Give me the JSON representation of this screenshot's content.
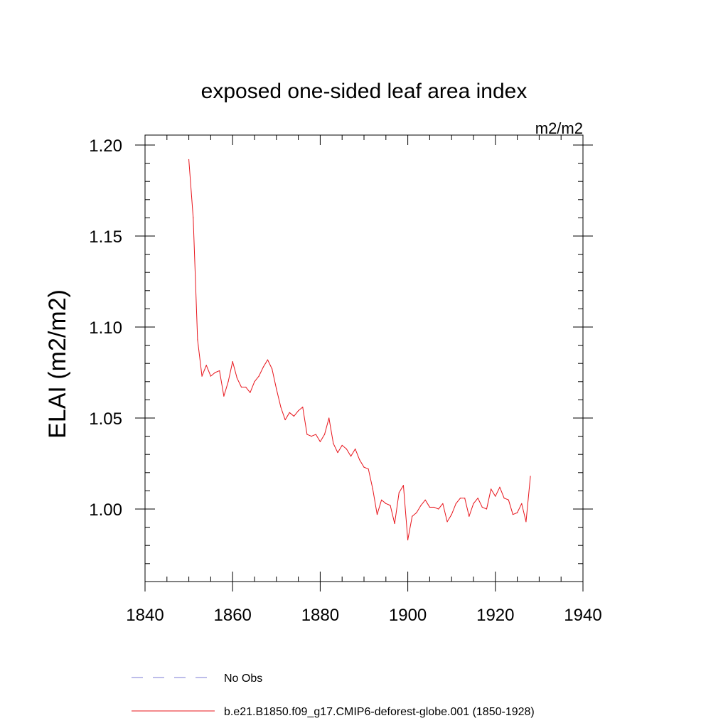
{
  "chart_data": {
    "type": "line",
    "title": "exposed one-sided leaf area index",
    "units_label": "m2/m2",
    "ylabel": "ELAI  (m2/m2)",
    "xlabel": "",
    "xlim": [
      1840,
      1940
    ],
    "ylim": [
      0.96,
      1.205
    ],
    "x_ticks": [
      1840,
      1860,
      1880,
      1900,
      1920,
      1940
    ],
    "x_tick_labels": [
      "1840",
      "1860",
      "1880",
      "1900",
      "1920",
      "1940"
    ],
    "y_ticks": [
      1.0,
      1.05,
      1.1,
      1.15,
      1.2
    ],
    "y_tick_labels": [
      "1.00",
      "1.05",
      "1.10",
      "1.15",
      "1.20"
    ],
    "grid": false,
    "series": [
      {
        "name": "b.e21.B1850.f09_g17.CMIP6-deforest-globe.001 (1850-1928)",
        "color": "#e8141b",
        "x": [
          1850,
          1851,
          1852,
          1853,
          1854,
          1855,
          1856,
          1857,
          1858,
          1859,
          1860,
          1861,
          1862,
          1863,
          1864,
          1865,
          1866,
          1867,
          1868,
          1869,
          1870,
          1871,
          1872,
          1873,
          1874,
          1875,
          1876,
          1877,
          1878,
          1879,
          1880,
          1881,
          1882,
          1883,
          1884,
          1885,
          1886,
          1887,
          1888,
          1889,
          1890,
          1891,
          1892,
          1893,
          1894,
          1895,
          1896,
          1897,
          1898,
          1899,
          1900,
          1901,
          1902,
          1903,
          1904,
          1905,
          1906,
          1907,
          1908,
          1909,
          1910,
          1911,
          1912,
          1913,
          1914,
          1915,
          1916,
          1917,
          1918,
          1919,
          1920,
          1921,
          1922,
          1923,
          1924,
          1925,
          1926,
          1927,
          1928
        ],
        "values": [
          1.192,
          1.16,
          1.093,
          1.073,
          1.079,
          1.073,
          1.075,
          1.076,
          1.062,
          1.07,
          1.081,
          1.072,
          1.067,
          1.067,
          1.064,
          1.07,
          1.073,
          1.078,
          1.082,
          1.077,
          1.066,
          1.056,
          1.049,
          1.053,
          1.051,
          1.054,
          1.056,
          1.041,
          1.04,
          1.041,
          1.037,
          1.041,
          1.05,
          1.036,
          1.031,
          1.035,
          1.033,
          1.029,
          1.033,
          1.027,
          1.023,
          1.022,
          1.011,
          0.997,
          1.005,
          1.003,
          1.002,
          0.992,
          1.009,
          1.013,
          0.983,
          0.996,
          0.998,
          1.002,
          1.005,
          1.001,
          1.001,
          1.0,
          1.003,
          0.993,
          0.997,
          1.003,
          1.006,
          1.006,
          0.996,
          1.003,
          1.006,
          1.001,
          1.0,
          1.011,
          1.007,
          1.012,
          1.006,
          1.005,
          0.997,
          0.998,
          1.003,
          0.993,
          1.018
        ]
      }
    ],
    "legend": [
      {
        "label": "No Obs",
        "style": "dashed",
        "color": "#7b7bd6"
      },
      {
        "label": "b.e21.B1850.f09_g17.CMIP6-deforest-globe.001 (1850-1928)",
        "style": "solid",
        "color": "#e8141b"
      }
    ],
    "legend_position": "bottom"
  }
}
